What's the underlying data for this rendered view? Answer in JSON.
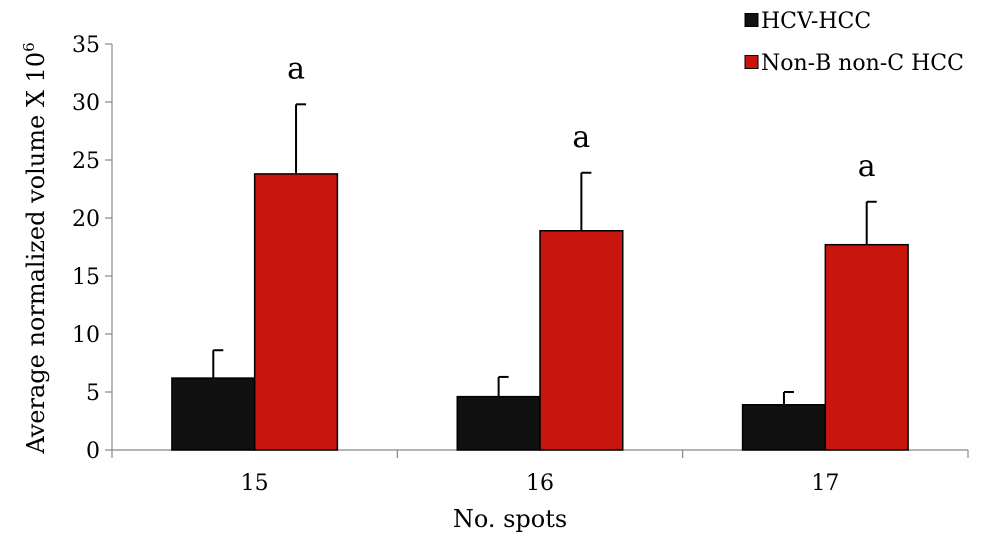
{
  "chart_data": {
    "type": "bar",
    "xlabel": "No. spots",
    "ylabel": "Average normalized volume X 10",
    "ylabel_superscript": "6",
    "ylim": [
      0,
      35
    ],
    "yticks": [
      0,
      5,
      10,
      15,
      20,
      25,
      30,
      35
    ],
    "categories": [
      "15",
      "16",
      "17"
    ],
    "series": [
      {
        "name": "HCV-HCC",
        "color": "#111111",
        "values": [
          6.2,
          4.6,
          3.9
        ],
        "errors": [
          2.4,
          1.7,
          1.1
        ]
      },
      {
        "name": "Non-B non-C HCC",
        "color": "#c8160e",
        "values": [
          23.8,
          18.9,
          17.7
        ],
        "errors": [
          6.0,
          5.0,
          3.7
        ],
        "labels": [
          "a",
          "a",
          "a"
        ]
      }
    ],
    "legend_position": "top-right",
    "grid": false
  }
}
